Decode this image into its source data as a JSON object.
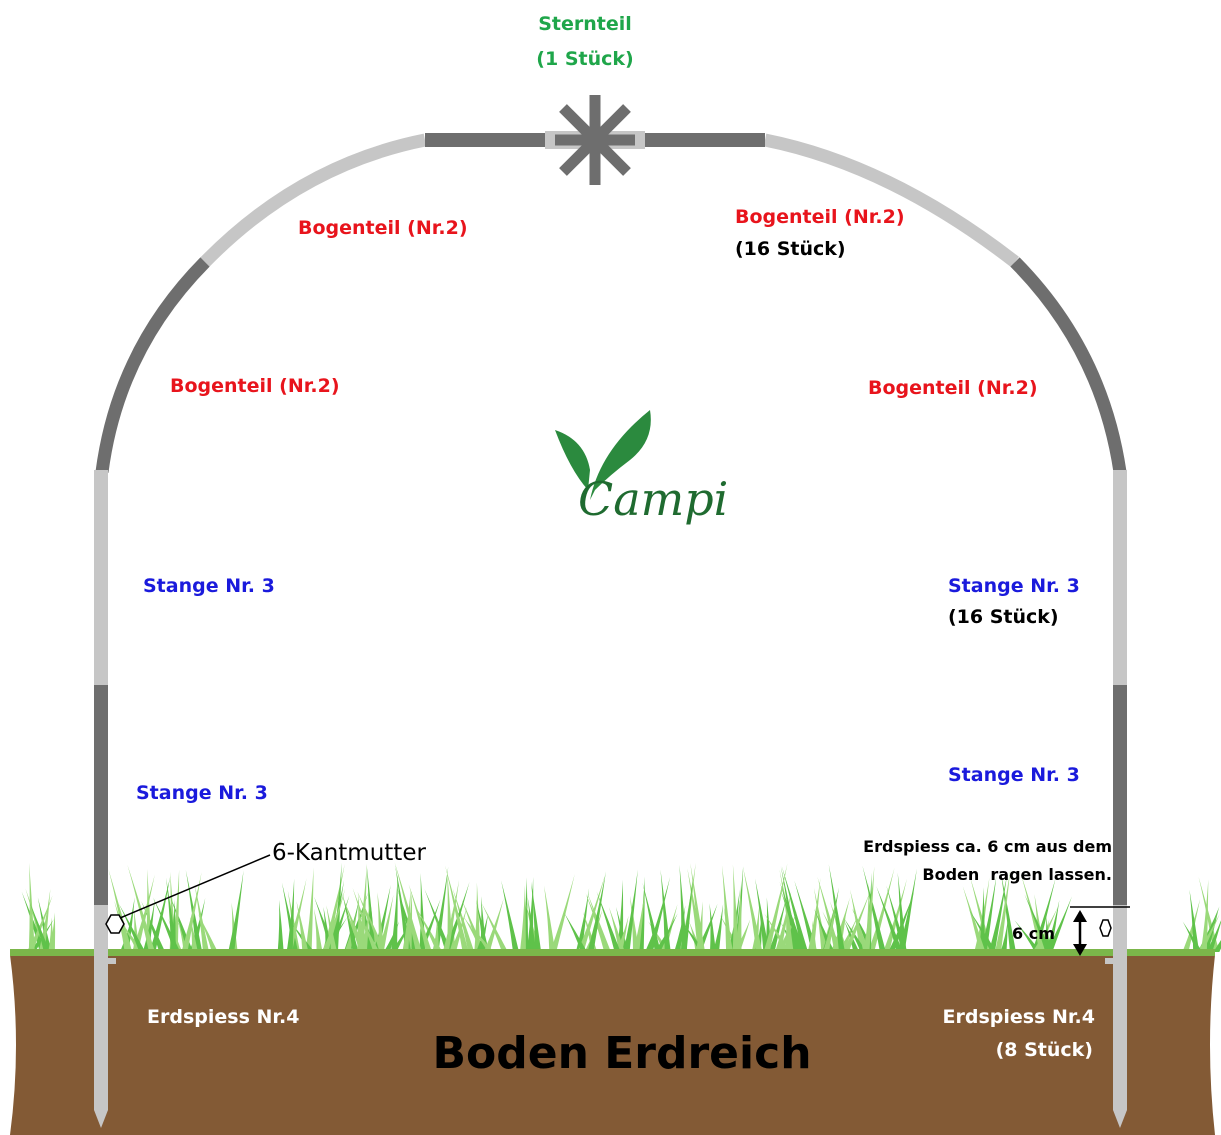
{
  "star": {
    "name": "Sternteil",
    "count": "(1 Stück)"
  },
  "arc_parts": {
    "labels": [
      "Bogenteil (Nr.2)",
      "Bogenteil (Nr.2)",
      "Bogenteil (Nr.2)",
      "Bogenteil (Nr.2)"
    ],
    "count": "(16 Stück)"
  },
  "poles": {
    "labels": [
      "Stange Nr. 3",
      "Stange Nr. 3",
      "Stange Nr. 3",
      "Stange Nr. 3"
    ],
    "count": "(16 Stück)"
  },
  "nut": "6-Kantmutter",
  "spike_note": [
    "Erdspiess ca. 6 cm aus dem",
    "Boden  ragen lassen."
  ],
  "measure": "6 cm",
  "spikes": {
    "labels": [
      "Erdspiess Nr.4",
      "Erdspiess Nr.4"
    ],
    "count": "(8 Stück)"
  },
  "ground": "Boden Erdreich",
  "logo": "Campi"
}
